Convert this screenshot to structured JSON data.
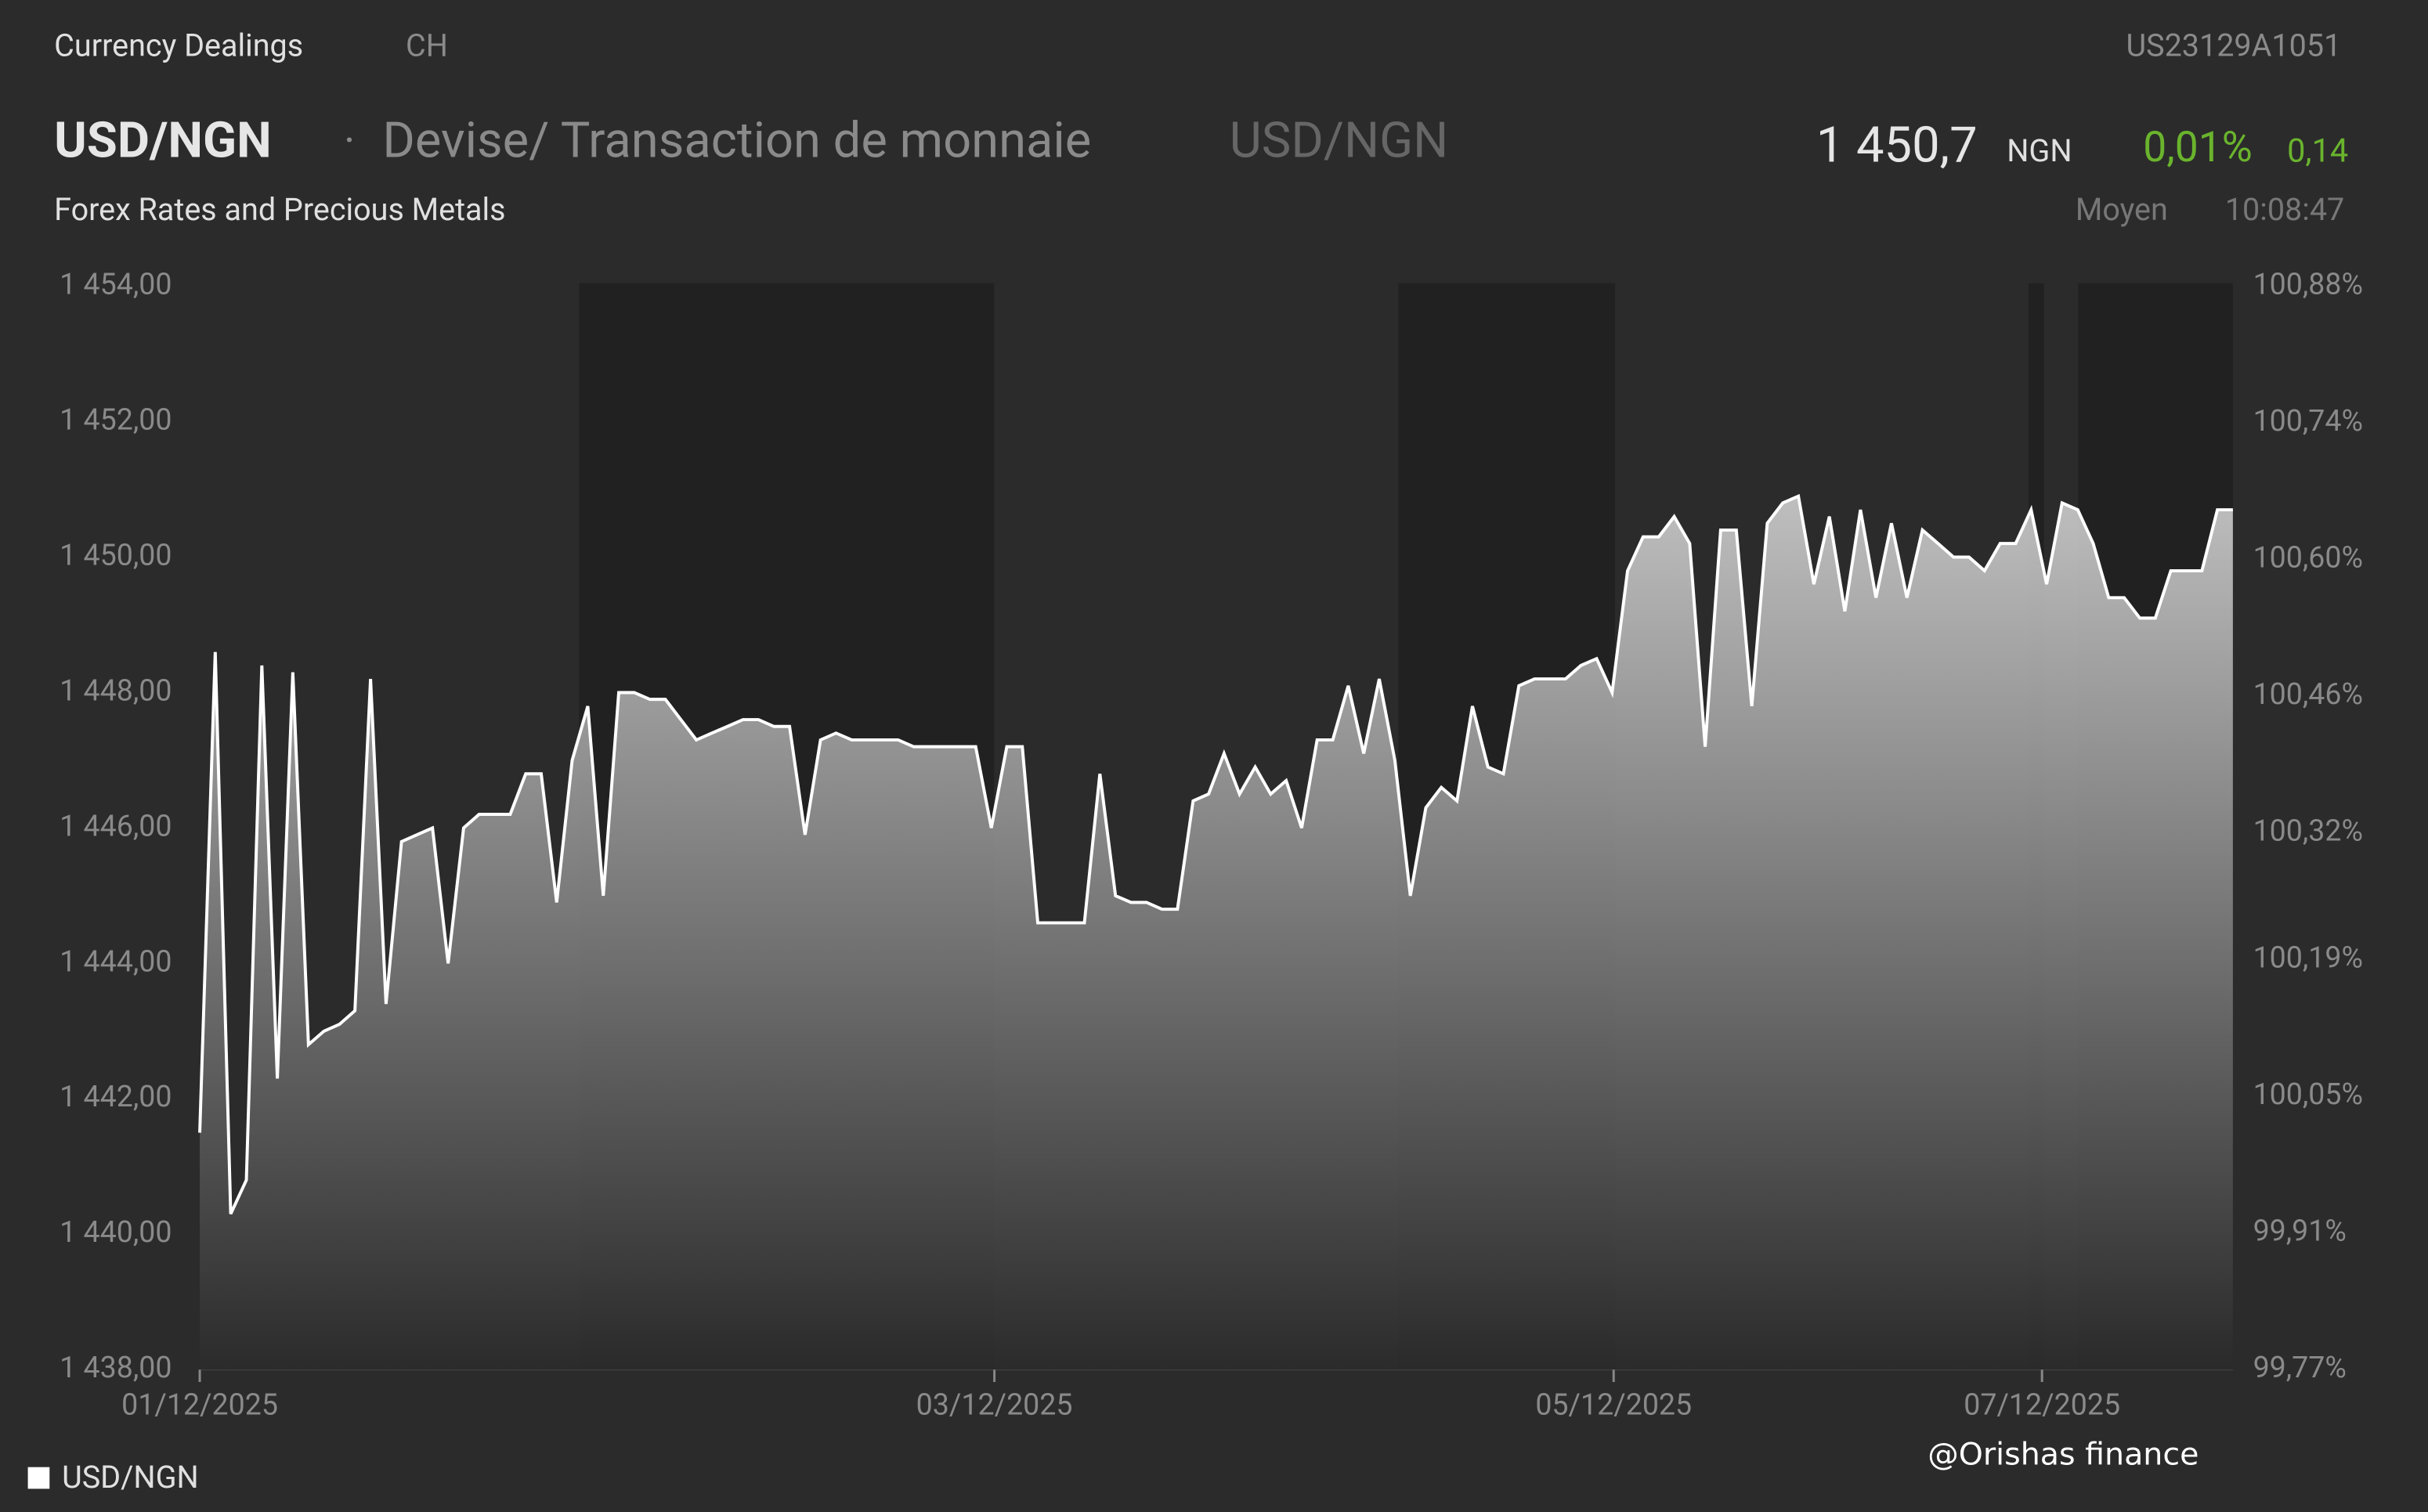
{
  "header": {
    "section": "Currency Dealings",
    "country": "CH",
    "isin": "US23129A1051",
    "symbol": "USD/NGN",
    "separator": "·",
    "description": "Devise/ Transaction de monnaie",
    "symbol_alt": "USD/NGN",
    "last": "1 450,7",
    "currency": "NGN",
    "change_pct": "0,01%",
    "change": "0,14",
    "market": "Forex Rates and Precious Metals",
    "quote_type": "Moyen",
    "time": "10:08:47",
    "watermark": "@Orishas finance"
  },
  "chart_data": {
    "type": "area",
    "series": [
      {
        "name": "USD/NGN",
        "color": "#ffffff",
        "values": [
          1441.5,
          1448.6,
          1440.3,
          1440.8,
          1448.4,
          1442.3,
          1448.3,
          1442.8,
          1443,
          1443.1,
          1443.3,
          1448.2,
          1443.4,
          1445.8,
          1445.9,
          1446,
          1444,
          1446,
          1446.2,
          1446.2,
          1446.2,
          1446.8,
          1446.8,
          1444.9,
          1447,
          1447.8,
          1445,
          1448,
          1448,
          1447.9,
          1447.9,
          1447.6,
          1447.3,
          1447.4,
          1447.5,
          1447.6,
          1447.6,
          1447.5,
          1447.5,
          1445.9,
          1447.3,
          1447.4,
          1447.3,
          1447.3,
          1447.3,
          1447.3,
          1447.2,
          1447.2,
          1447.2,
          1447.2,
          1447.2,
          1446,
          1447.2,
          1447.2,
          1444.6,
          1444.6,
          1444.6,
          1444.6,
          1446.8,
          1445,
          1444.9,
          1444.9,
          1444.8,
          1444.8,
          1446.4,
          1446.5,
          1447.1,
          1446.5,
          1446.9,
          1446.5,
          1446.7,
          1446,
          1447.3,
          1447.3,
          1448.1,
          1447.1,
          1448.2,
          1447,
          1445,
          1446.3,
          1446.6,
          1446.4,
          1447.8,
          1446.9,
          1446.8,
          1448.1,
          1448.2,
          1448.2,
          1448.2,
          1448.4,
          1448.5,
          1448,
          1449.8,
          1450.3,
          1450.3,
          1450.6,
          1450.2,
          1447.2,
          1450.4,
          1450.4,
          1447.8,
          1450.5,
          1450.8,
          1450.9,
          1449.6,
          1450.6,
          1449.2,
          1450.7,
          1449.4,
          1450.5,
          1449.4,
          1450.4,
          1450.2,
          1450,
          1450,
          1449.8,
          1450.2,
          1450.2,
          1450.7,
          1449.6,
          1450.8,
          1450.7,
          1450.2,
          1449.4,
          1449.4,
          1449.1,
          1449.1,
          1449.8,
          1449.8,
          1449.8,
          1450.7,
          1450.7
        ]
      }
    ],
    "xlim": [
      0,
      131
    ],
    "xticks": [
      {
        "value": 0,
        "label": "01/12/2025"
      },
      {
        "value": 51.2,
        "label": "03/12/2025"
      },
      {
        "value": 91.1,
        "label": "05/12/2025"
      },
      {
        "value": 118.7,
        "label": "07/12/2025"
      }
    ],
    "ylim": [
      1438,
      1454
    ],
    "yticks": [
      {
        "value": 1438,
        "label": "1 438,00"
      },
      {
        "value": 1440,
        "label": "1 440,00"
      },
      {
        "value": 1442,
        "label": "1 442,00"
      },
      {
        "value": 1444,
        "label": "1 444,00"
      },
      {
        "value": 1446,
        "label": "1 446,00"
      },
      {
        "value": 1448,
        "label": "1 448,00"
      },
      {
        "value": 1450,
        "label": "1 450,00"
      },
      {
        "value": 1452,
        "label": "1 452,00"
      },
      {
        "value": 1454,
        "label": "1 454,00"
      }
    ],
    "y2lim": [
      99.77,
      100.88
    ],
    "y2ticks": [
      {
        "value": 99.77,
        "label": "99,77%"
      },
      {
        "value": 99.91,
        "label": "99,91%"
      },
      {
        "value": 100.05,
        "label": "100,05%"
      },
      {
        "value": 100.19,
        "label": "100,19%"
      },
      {
        "value": 100.32,
        "label": "100,32%"
      },
      {
        "value": 100.46,
        "label": "100,46%"
      },
      {
        "value": 100.6,
        "label": "100,60%"
      },
      {
        "value": 100.74,
        "label": "100,74%"
      },
      {
        "value": 100.88,
        "label": "100,88%"
      }
    ],
    "legend": "bottom-left"
  }
}
